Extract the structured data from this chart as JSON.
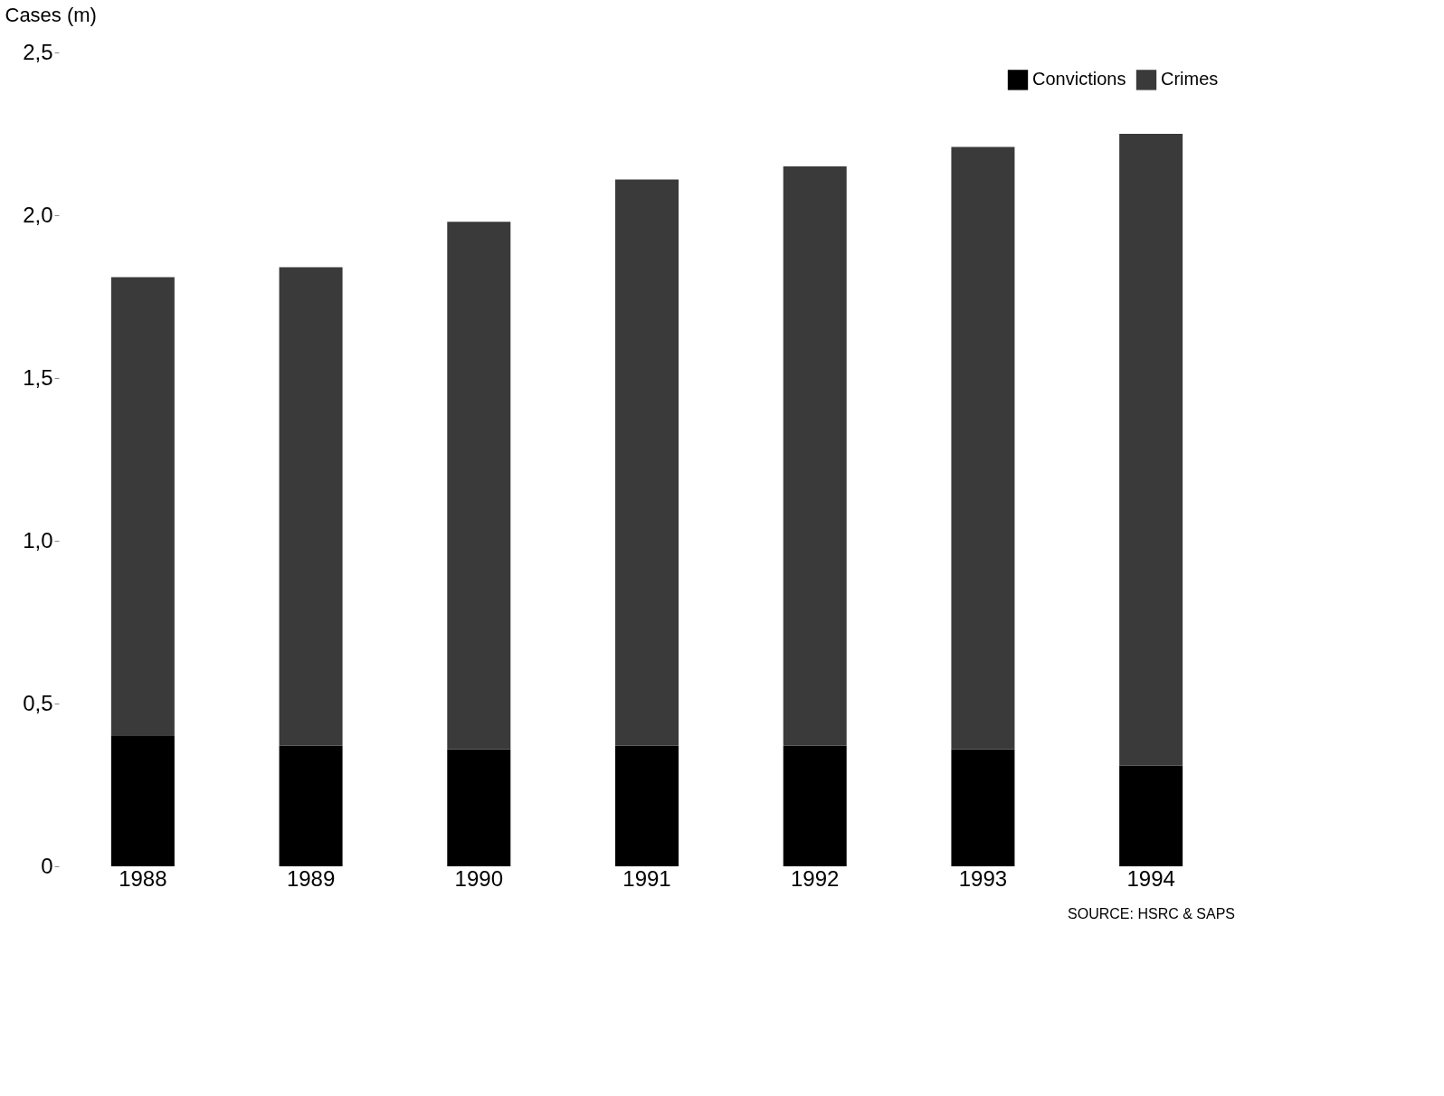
{
  "chart_data": {
    "type": "bar",
    "stacked": true,
    "ylabel": "Cases (m)",
    "categories": [
      "1988",
      "1989",
      "1990",
      "1991",
      "1992",
      "1993",
      "1994"
    ],
    "series": [
      {
        "name": "Convictions",
        "color": "#000000",
        "values": [
          0.4,
          0.37,
          0.36,
          0.37,
          0.37,
          0.36,
          0.31
        ]
      },
      {
        "name": "Crimes",
        "color": "#3a3a3a",
        "values": [
          1.41,
          1.47,
          1.62,
          1.74,
          1.78,
          1.85,
          1.94
        ]
      }
    ],
    "ylim": [
      0,
      2.5
    ],
    "yticks": [
      0,
      {
        "value": 0.5,
        "label": "0,5"
      },
      {
        "value": 1.0,
        "label": "1,0"
      },
      {
        "value": 1.5,
        "label": "1,5"
      },
      {
        "value": 2.0,
        "label": "2,0"
      },
      {
        "value": 2.5,
        "label": "2,5"
      }
    ],
    "grid": false,
    "legend": "top right",
    "annotations": [
      "SOURCE: HSRC & SAPS"
    ]
  }
}
